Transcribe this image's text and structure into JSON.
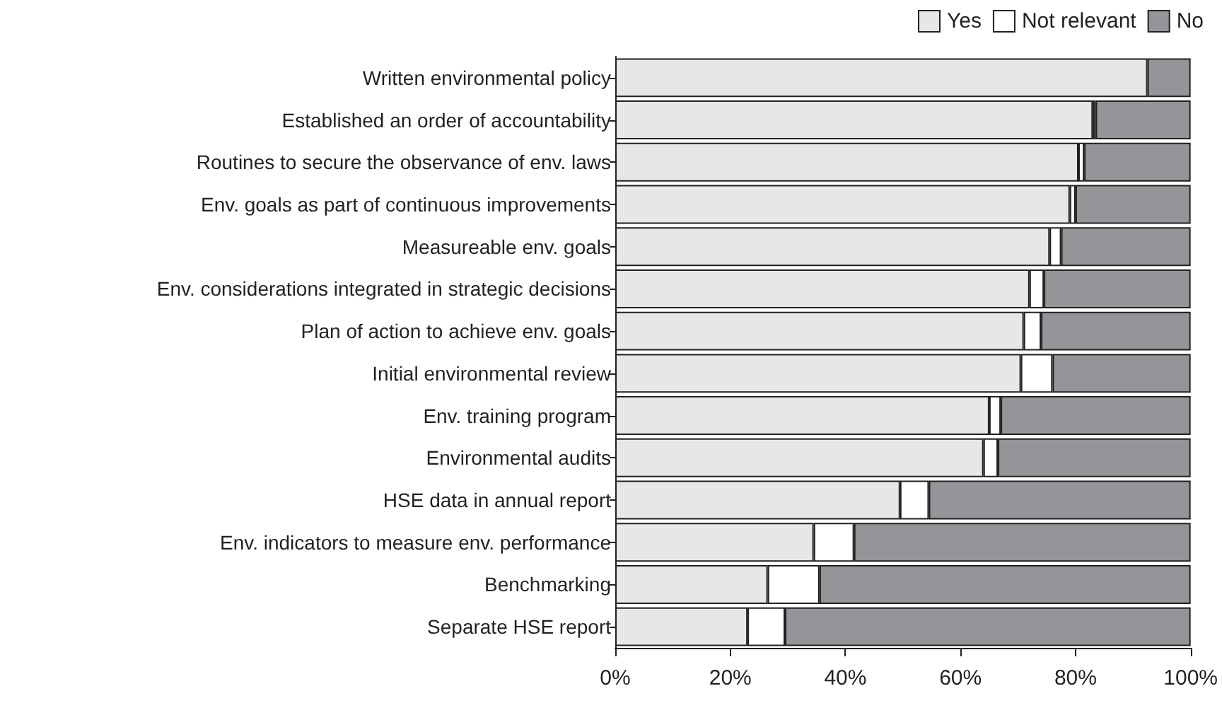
{
  "chart_data": {
    "type": "bar",
    "orientation": "horizontal",
    "stacked": true,
    "legend": "top right",
    "grid": false,
    "categories": [
      "Written environmental policy",
      "Established an order of accountability",
      "Routines to secure the observance of env. laws",
      "Env. goals as part of continuous improvements",
      "Measureable env. goals",
      "Env. considerations integrated in strategic decisions",
      "Plan of action to achieve env. goals",
      "Initial environmental review",
      "Env. training program",
      "Environmental audits",
      "HSE data in annual report",
      "Env. indicators to measure env. performance",
      "Benchmarking",
      "Separate HSE report"
    ],
    "series": [
      {
        "name": "Yes",
        "color": "#e6e7e9",
        "values": [
          92.5,
          83,
          80.5,
          79,
          75.5,
          72,
          71,
          70.5,
          65,
          64,
          49.5,
          34.5,
          26.5,
          23
        ]
      },
      {
        "name": "Not relevant",
        "color": "#ffffff",
        "values": [
          0,
          0.5,
          1,
          1,
          2,
          2.5,
          3,
          5.5,
          2,
          2.5,
          5,
          7,
          9,
          6.5
        ]
      },
      {
        "name": "No",
        "color": "#939598",
        "values": [
          7.5,
          16.5,
          18.5,
          20,
          22.5,
          25.5,
          26,
          24,
          33,
          33.5,
          45.5,
          58.5,
          64.5,
          70.5
        ]
      }
    ],
    "xlim": [
      0,
      100
    ],
    "xticks": [
      {
        "value": 0,
        "label": "0%"
      },
      {
        "value": 20,
        "label": "20%"
      },
      {
        "value": 40,
        "label": "40%"
      },
      {
        "value": 60,
        "label": "60%"
      },
      {
        "value": 80,
        "label": "80%"
      },
      {
        "value": 100,
        "label": "100%"
      }
    ]
  }
}
